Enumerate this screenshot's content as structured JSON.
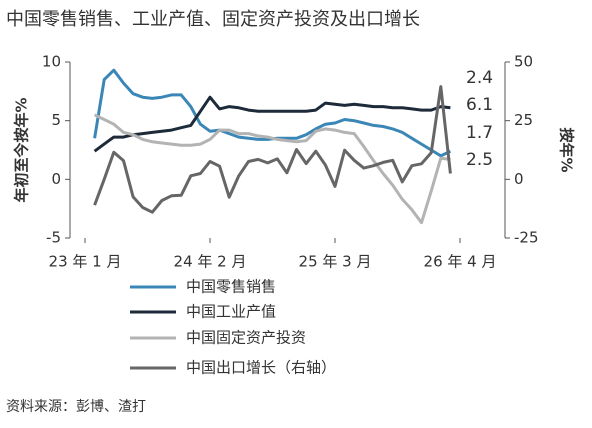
{
  "chart_data": {
    "type": "line",
    "title": "中国零售销售、工业产值、固定资产投资及出口增长",
    "ylabel": "年初至今按年%",
    "y2label": "按年%",
    "source": "资料来源：彭博、渣打",
    "categories": [
      "23 年 1 月",
      null,
      null,
      null,
      null,
      null,
      null,
      null,
      null,
      null,
      null,
      null,
      null,
      "24 年 2 月",
      null,
      null,
      null,
      null,
      null,
      null,
      null,
      null,
      null,
      null,
      null,
      null,
      "25 年 3 月",
      null,
      null,
      null,
      null,
      null,
      null,
      null,
      null,
      null,
      null,
      null,
      null,
      "26 年 4 月"
    ],
    "ylim": [
      -5,
      10
    ],
    "yticks": [
      -5,
      0,
      5,
      10
    ],
    "y2lim": [
      -25,
      50
    ],
    "y2ticks": [
      -25,
      0,
      25,
      50
    ],
    "series": [
      {
        "name": "中国零售销售",
        "color": "#3a87b7",
        "values": [
          null,
          3.5,
          8.5,
          9.3,
          8.2,
          7.3,
          7.0,
          6.9,
          7.0,
          7.2,
          7.2,
          6.2,
          4.7,
          4.1,
          4.2,
          3.9,
          3.6,
          3.5,
          3.4,
          3.4,
          3.5,
          3.5,
          3.5,
          3.8,
          4.3,
          4.7,
          4.8,
          5.1,
          5.0,
          4.8,
          4.6,
          4.5,
          4.3,
          4.0,
          3.5,
          3.0,
          2.5,
          2.0,
          2.4,
          null
        ]
      },
      {
        "name": "中国工业产值",
        "color": "#1c2a3a",
        "values": [
          null,
          2.4,
          3.0,
          3.6,
          3.6,
          3.8,
          3.9,
          4.0,
          4.1,
          4.2,
          4.4,
          4.6,
          5.8,
          7.0,
          6.0,
          6.2,
          6.1,
          5.9,
          5.8,
          5.8,
          5.8,
          5.8,
          5.8,
          5.8,
          5.9,
          6.5,
          6.4,
          6.3,
          6.4,
          6.3,
          6.2,
          6.2,
          6.1,
          6.1,
          6.0,
          5.9,
          5.9,
          6.2,
          6.1,
          null
        ]
      },
      {
        "name": "中国固定资产投资",
        "color": "#b3b3b3",
        "values": [
          null,
          5.5,
          5.1,
          4.7,
          4.0,
          3.8,
          3.4,
          3.2,
          3.1,
          3.0,
          2.9,
          2.9,
          3.0,
          3.4,
          4.2,
          4.2,
          3.9,
          3.9,
          3.7,
          3.6,
          3.4,
          3.3,
          3.2,
          3.3,
          4.1,
          4.3,
          4.2,
          4.0,
          3.9,
          2.8,
          1.6,
          0.5,
          -0.5,
          -1.7,
          -2.6,
          -3.7,
          -1.0,
          1.8,
          1.7,
          null
        ]
      },
      {
        "name": "中国出口增长（右轴）",
        "color": "#666666",
        "axis": "y2",
        "values": [
          null,
          -11,
          0,
          11.5,
          8,
          -7.5,
          -12,
          -14,
          -9,
          -7,
          -6.8,
          1.5,
          2.5,
          7.6,
          5.6,
          -7.6,
          1.5,
          7.6,
          8.5,
          7,
          8.7,
          2.8,
          12.7,
          6.7,
          12,
          6.1,
          -3,
          12.4,
          8.1,
          4.8,
          5.8,
          7.2,
          8.1,
          -1.1,
          5.8,
          6.6,
          11.3,
          39.5,
          2.5,
          null
        ]
      }
    ]
  }
}
